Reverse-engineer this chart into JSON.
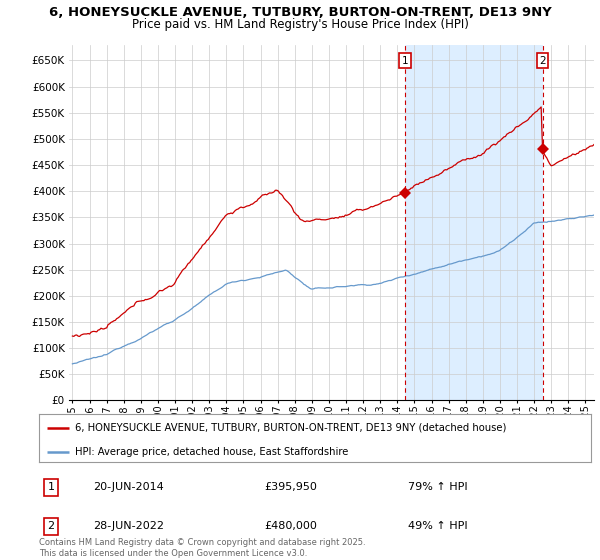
{
  "title1": "6, HONEYSUCKLE AVENUE, TUTBURY, BURTON-ON-TRENT, DE13 9NY",
  "title2": "Price paid vs. HM Land Registry's House Price Index (HPI)",
  "ylim": [
    0,
    680000
  ],
  "yticks": [
    0,
    50000,
    100000,
    150000,
    200000,
    250000,
    300000,
    350000,
    400000,
    450000,
    500000,
    550000,
    600000,
    650000
  ],
  "ytick_labels": [
    "£0",
    "£50K",
    "£100K",
    "£150K",
    "£200K",
    "£250K",
    "£300K",
    "£350K",
    "£400K",
    "£450K",
    "£500K",
    "£550K",
    "£600K",
    "£650K"
  ],
  "legend1": "6, HONEYSUCKLE AVENUE, TUTBURY, BURTON-ON-TRENT, DE13 9NY (detached house)",
  "legend2": "HPI: Average price, detached house, East Staffordshire",
  "line1_color": "#cc0000",
  "line2_color": "#6699cc",
  "shade_color": "#ddeeff",
  "vline_color": "#cc0000",
  "point1_date": 2014.47,
  "point1_value": 395950,
  "point2_date": 2022.49,
  "point2_value": 480000,
  "note1_label": "1",
  "note1_date": "20-JUN-2014",
  "note1_price": "£395,950",
  "note1_hpi": "79% ↑ HPI",
  "note2_label": "2",
  "note2_date": "28-JUN-2022",
  "note2_price": "£480,000",
  "note2_hpi": "49% ↑ HPI",
  "footer": "Contains HM Land Registry data © Crown copyright and database right 2025.\nThis data is licensed under the Open Government Licence v3.0.",
  "bg_color": "#ffffff",
  "grid_color": "#cccccc",
  "xmin": 1994.8,
  "xmax": 2025.5
}
